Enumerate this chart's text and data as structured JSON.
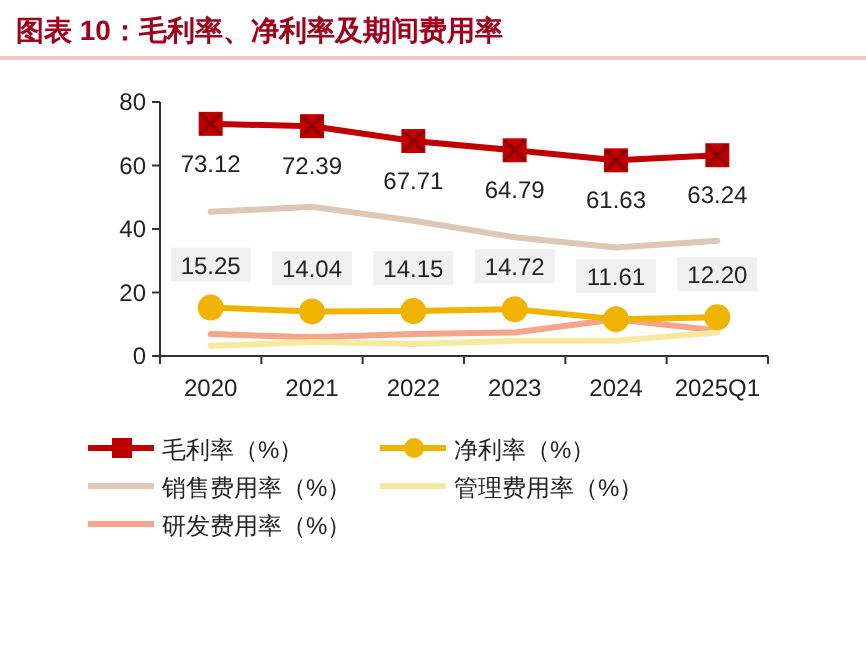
{
  "chart_data": {
    "type": "line",
    "title": "图表 10：毛利率、净利率及期间费用率",
    "categories": [
      "2020",
      "2021",
      "2022",
      "2023",
      "2024",
      "2025Q1"
    ],
    "ylim": [
      0,
      80
    ],
    "yticks": [
      0,
      20,
      40,
      60,
      80
    ],
    "grid": false,
    "legend": "bottom",
    "series": [
      {
        "name": "毛利率（%）",
        "color": "#c00000",
        "marker": "square",
        "values": [
          73.12,
          72.39,
          67.71,
          64.79,
          61.63,
          63.24
        ],
        "value_labels": [
          "73.12",
          "72.39",
          "67.71",
          "64.79",
          "61.63",
          "63.24"
        ]
      },
      {
        "name": "净利率（%）",
        "color": "#f0b400",
        "marker": "circle",
        "values": [
          15.25,
          14.04,
          14.15,
          14.72,
          11.61,
          12.2
        ],
        "value_labels": [
          "15.25",
          "14.04",
          "14.15",
          "14.72",
          "11.61",
          "12.20"
        ]
      },
      {
        "name": "销售费用率（%）",
        "color": "#dcc8b4",
        "marker": "none",
        "values": [
          45.4,
          47,
          42.6,
          37.4,
          34.2,
          36.3
        ]
      },
      {
        "name": "管理费用率（%）",
        "color": "#f5eaa0",
        "marker": "none",
        "values": [
          3.2,
          4.4,
          3.8,
          4.8,
          4.8,
          7.4
        ]
      },
      {
        "name": "研发费用率（%）",
        "color": "#f4a58a",
        "marker": "none",
        "values": [
          6.9,
          5.9,
          6.9,
          7.4,
          11.6,
          8.0
        ]
      }
    ]
  }
}
